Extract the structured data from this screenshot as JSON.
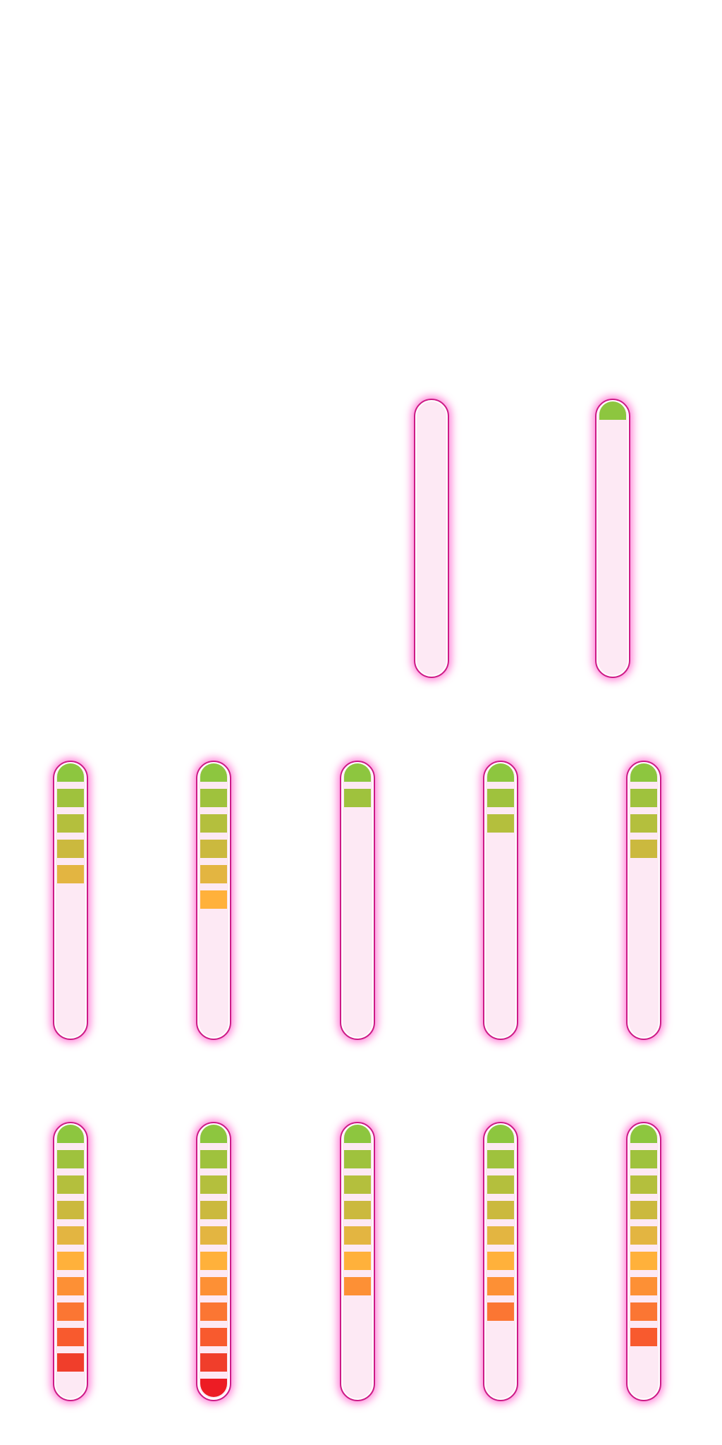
{
  "screen": "health-bar-sprite-sheet",
  "segments_total": 11,
  "segment_colors": [
    "#8dc63f",
    "#9fc23d",
    "#b4bf3d",
    "#cbb93e",
    "#e3b541",
    "#ffb13b",
    "#fd9035",
    "#fb7633",
    "#f85a2e",
    "#f03e2b",
    "#ed1c24"
  ],
  "meters": [
    {
      "id": "meter-r1-4",
      "level": 0
    },
    {
      "id": "meter-r1-5",
      "level": 1
    },
    {
      "id": "meter-r2-1",
      "level": 5
    },
    {
      "id": "meter-r2-2",
      "level": 6
    },
    {
      "id": "meter-r2-3",
      "level": 2
    },
    {
      "id": "meter-r2-4",
      "level": 3
    },
    {
      "id": "meter-r2-5",
      "level": 4
    },
    {
      "id": "meter-r3-1",
      "level": 10
    },
    {
      "id": "meter-r3-2",
      "level": 11
    },
    {
      "id": "meter-r3-3",
      "level": 7
    },
    {
      "id": "meter-r3-4",
      "level": 8
    },
    {
      "id": "meter-r3-5",
      "level": 9
    }
  ]
}
